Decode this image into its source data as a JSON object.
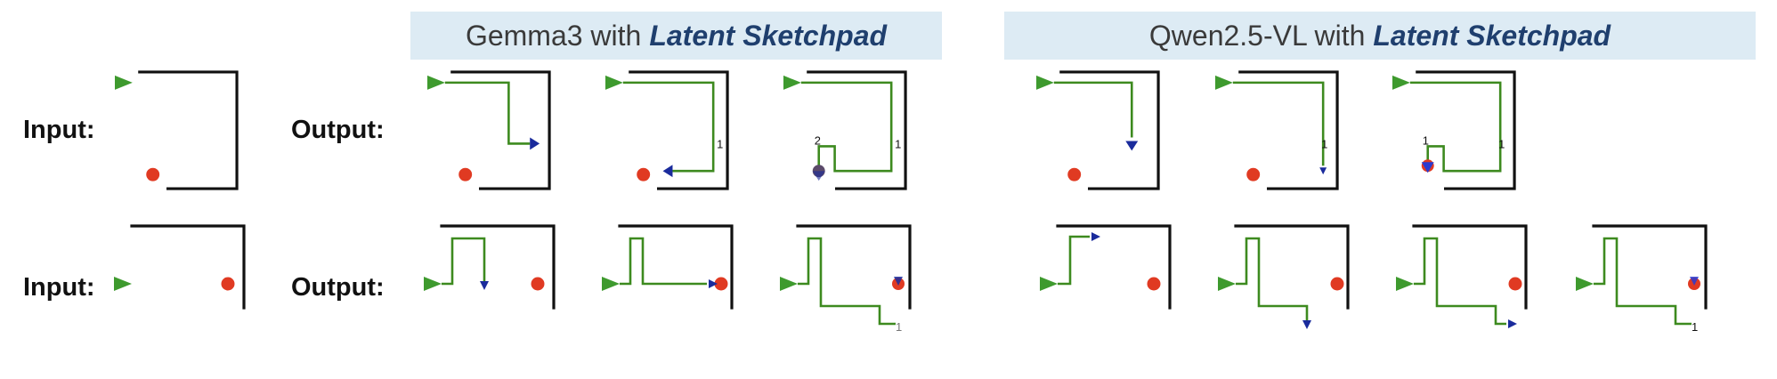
{
  "headers": {
    "gemma": {
      "model": "Gemma3 with",
      "method": "Latent Sketchpad"
    },
    "qwen": {
      "model": "Qwen2.5-VL with",
      "method": "Latent Sketchpad"
    }
  },
  "labels": {
    "input": "Input:",
    "output": "Output:"
  },
  "step_marks": {
    "one": "1",
    "two": "2"
  },
  "colors": {
    "wall": "#111111",
    "path": "#3d8a1f",
    "start": "#3e9a2e",
    "goal": "#e03a22",
    "agent": "#1a2b9c",
    "header_bg": "#ddebf4",
    "header_brand": "#1f3f6e"
  },
  "icons": {
    "start": "green-triangle-start-icon",
    "goal": "red-dot-goal-icon",
    "agent": "blue-arrow-agent-icon"
  }
}
